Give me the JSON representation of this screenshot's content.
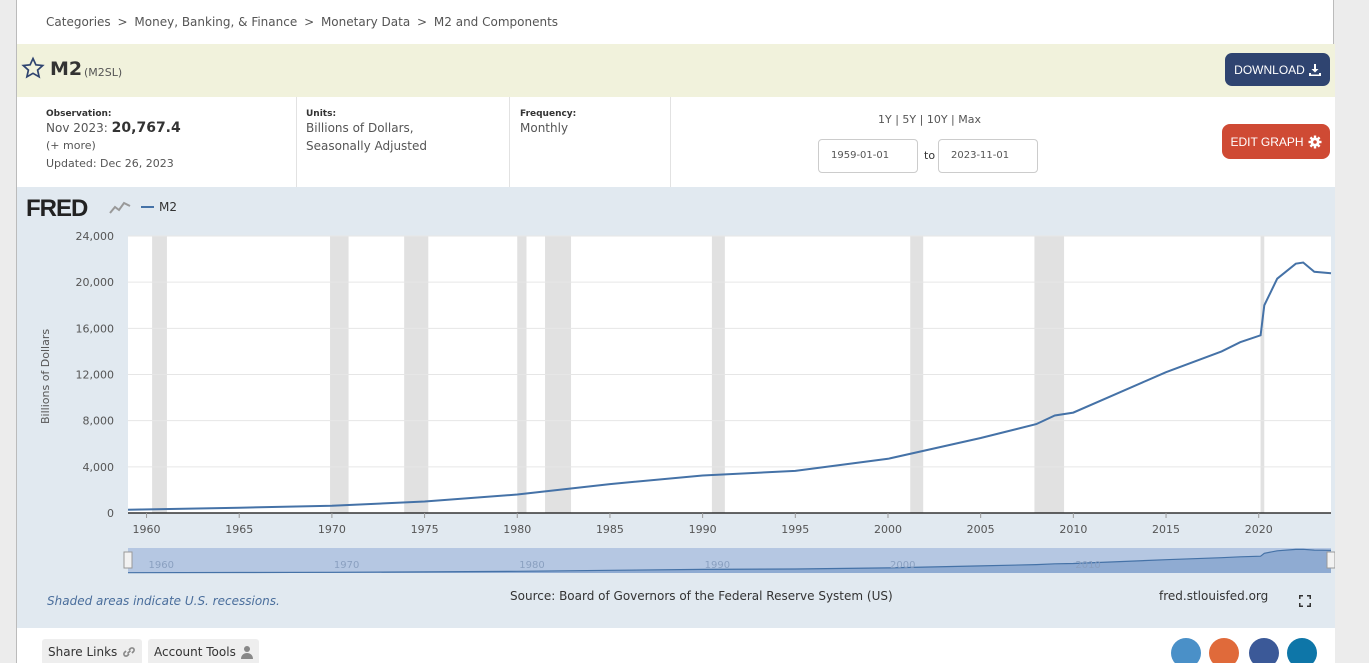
{
  "breadcrumb": [
    "Categories",
    ">",
    "Money, Banking, & Finance",
    ">",
    "Monetary Data",
    ">",
    "M2 and Components"
  ],
  "series": {
    "title": "M2",
    "id": "(M2SL)"
  },
  "download_label": "DOWNLOAD",
  "observation": {
    "label": "Observation:",
    "date": "Nov 2023:",
    "value": "20,767.4",
    "more": "(+ more)",
    "updated": "Updated: Dec 26, 2023"
  },
  "units": {
    "label": "Units:",
    "line1": "Billions of Dollars,",
    "line2": "Seasonally Adjusted"
  },
  "frequency": {
    "label": "Frequency:",
    "value": "Monthly"
  },
  "range": {
    "links": "1Y | 5Y | 10Y | Max",
    "start": "1959-01-01",
    "to": "to",
    "end": "2023-11-01"
  },
  "edit_label": "EDIT GRAPH",
  "logo": "FRED",
  "chart_data": {
    "type": "line",
    "series": [
      {
        "name": "M2",
        "color": "#4572a7",
        "x": [
          1959,
          1965,
          1970,
          1975,
          1980,
          1985,
          1990,
          1995,
          2000,
          2005,
          2008,
          2009,
          2010,
          2012,
          2015,
          2018,
          2019,
          2020.1,
          2020.3,
          2021,
          2022,
          2022.4,
          2023,
          2023.9
        ],
        "values": [
          290,
          460,
          620,
          1000,
          1600,
          2500,
          3250,
          3650,
          4700,
          6500,
          7700,
          8450,
          8700,
          10100,
          12200,
          14000,
          14800,
          15400,
          18000,
          20300,
          21600,
          21700,
          20900,
          20767
        ]
      }
    ],
    "ylabel": "Billions of Dollars",
    "xlim": [
      1959,
      2023.9
    ],
    "ylim": [
      0,
      24000
    ],
    "yticks": [
      "0",
      "4,000",
      "8,000",
      "12,000",
      "16,000",
      "20,000",
      "24,000"
    ],
    "xticks": [
      "1960",
      "1965",
      "1970",
      "1975",
      "1980",
      "1985",
      "1990",
      "1995",
      "2000",
      "2005",
      "2010",
      "2015",
      "2020"
    ],
    "navigator_ticks": [
      "1960",
      "1970",
      "1980",
      "1990",
      "2000",
      "2010"
    ],
    "recessions": [
      [
        1960.3,
        1961.1
      ],
      [
        1969.9,
        1970.9
      ],
      [
        1973.9,
        1975.2
      ],
      [
        1980.0,
        1980.5
      ],
      [
        1981.5,
        1982.9
      ],
      [
        1990.5,
        1991.2
      ],
      [
        2001.2,
        2001.9
      ],
      [
        2007.9,
        2009.5
      ],
      [
        2020.1,
        2020.3
      ]
    ]
  },
  "notes": {
    "recession": "Shaded areas indicate U.S. recessions.",
    "source": "Source: Board of Governors of the Federal Reserve System (US)",
    "url": "fred.stlouisfed.org"
  },
  "tools": {
    "share": "Share Links",
    "account": "Account Tools"
  }
}
